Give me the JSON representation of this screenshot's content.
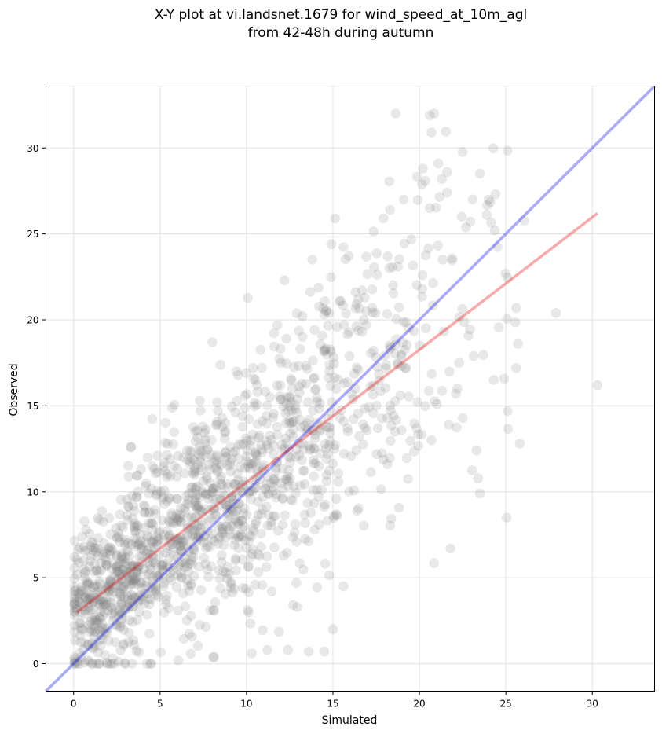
{
  "chart_data": {
    "type": "scatter",
    "title_lines": [
      "X-Y plot at vi.landsnet.1679 for wind_speed_at_10m_agl",
      "from 42-48h during autumn"
    ],
    "xlabel": "Simulated",
    "ylabel": "Observed",
    "xlim": [
      -1.6,
      33.6
    ],
    "ylim": [
      -1.6,
      33.6
    ],
    "xticks": [
      0,
      5,
      10,
      15,
      20,
      25,
      30
    ],
    "yticks": [
      0,
      5,
      10,
      15,
      20,
      25,
      30
    ],
    "grid": true,
    "point_color": "#808080",
    "point_opacity": 0.18,
    "reference_lines": [
      {
        "name": "",
        "color": "#0000ee",
        "opacity": 0.33,
        "x": [
          -1.6,
          33.6
        ],
        "y": [
          -1.6,
          33.6
        ]
      },
      {
        "name": "",
        "color": "#ee0000",
        "opacity": 0.33,
        "x": [
          0.2,
          30.3
        ],
        "y": [
          3.0,
          26.2
        ]
      }
    ],
    "scatter_generation": {
      "n_points": 1500,
      "seed": 1679,
      "x_max": 30.3
    },
    "notable_points": [
      {
        "x": 20.6,
        "y": 31.9
      },
      {
        "x": 20.7,
        "y": 30.9
      },
      {
        "x": 23.5,
        "y": 28.5
      },
      {
        "x": 24.0,
        "y": 27.0
      },
      {
        "x": 24.4,
        "y": 27.3
      },
      {
        "x": 23.9,
        "y": 26.1
      },
      {
        "x": 25.6,
        "y": 20.7
      },
      {
        "x": 27.9,
        "y": 20.4
      },
      {
        "x": 30.3,
        "y": 16.2
      },
      {
        "x": 25.7,
        "y": 18.6
      },
      {
        "x": 25.6,
        "y": 17.2
      },
      {
        "x": 25.8,
        "y": 12.8
      },
      {
        "x": 25.1,
        "y": 14.7
      },
      {
        "x": 23.5,
        "y": 9.9
      },
      {
        "x": 21.8,
        "y": 6.7
      },
      {
        "x": 23.3,
        "y": 12.4
      },
      {
        "x": 24.3,
        "y": 16.5
      },
      {
        "x": 22.3,
        "y": 17.5
      },
      {
        "x": 22.2,
        "y": 16.0
      },
      {
        "x": 21.7,
        "y": 13.9
      },
      {
        "x": 20.7,
        "y": 13.0
      },
      {
        "x": 21.1,
        "y": 29.1
      },
      {
        "x": 20.2,
        "y": 28.8
      },
      {
        "x": 21.6,
        "y": 28.6
      },
      {
        "x": 21.3,
        "y": 28.2
      },
      {
        "x": 21.6,
        "y": 27.4
      },
      {
        "x": 20.6,
        "y": 26.5
      },
      {
        "x": 19.1,
        "y": 27.0
      },
      {
        "x": 18.3,
        "y": 26.4
      },
      {
        "x": 14.9,
        "y": 24.4
      },
      {
        "x": 13.8,
        "y": 23.5
      },
      {
        "x": 12.2,
        "y": 22.3
      },
      {
        "x": 14.5,
        "y": 0.7
      },
      {
        "x": 11.2,
        "y": 0.8
      },
      {
        "x": 10.3,
        "y": 0.6
      },
      {
        "x": 8.1,
        "y": 0.4
      },
      {
        "x": 0.9,
        "y": 0.1
      },
      {
        "x": 1.9,
        "y": 0.05
      },
      {
        "x": 2.6,
        "y": 0.1
      },
      {
        "x": 12.4,
        "y": 0.8
      },
      {
        "x": 13.6,
        "y": 0.7
      },
      {
        "x": 15.0,
        "y": 2.0
      }
    ]
  }
}
